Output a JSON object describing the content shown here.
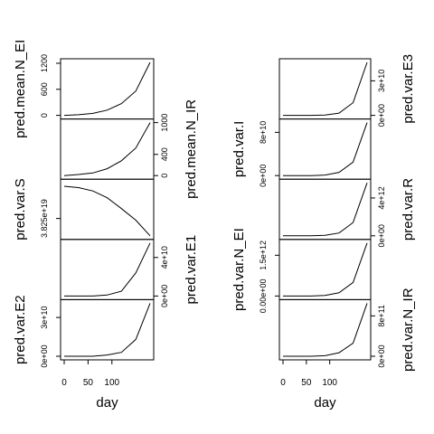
{
  "chart_data": [
    {
      "type": "line",
      "column": "left",
      "xlabel": "day",
      "x": [
        0,
        30,
        60,
        90,
        120,
        150,
        180
      ],
      "x_ticks": [
        0,
        50,
        100
      ],
      "xlim": [
        0,
        180
      ],
      "panels": [
        {
          "name": "pred.mean.N_EI",
          "ylabel": "pred.mean.N_EI",
          "axis_side": "left",
          "yticks": [
            0,
            600,
            1200
          ],
          "ytick_labels": [
            "0",
            "600",
            "1200"
          ],
          "ylim": [
            0,
            1220
          ],
          "values": [
            0,
            15,
            45,
            120,
            270,
            560,
            1220
          ]
        },
        {
          "name": "pred.mean.N_IR",
          "ylabel": "pred.mean.N_IR",
          "axis_side": "right",
          "yticks": [
            0,
            400,
            1000
          ],
          "ytick_labels": [
            "0",
            "400",
            "1000"
          ],
          "ylim": [
            0,
            1000
          ],
          "values": [
            0,
            20,
            50,
            130,
            280,
            520,
            1000
          ]
        },
        {
          "name": "pred.var.S",
          "ylabel": "pred.var.S",
          "axis_side": "left",
          "yticks": [
            3.825e+19
          ],
          "ytick_labels": [
            "3.825e+19"
          ],
          "ylim": [
            3.57e+19,
            4.35e+19
          ],
          "values": [
            4.3e+19,
            4.28e+19,
            4.23e+19,
            4.13e+19,
            3.97e+19,
            3.8e+19,
            3.57e+19
          ]
        },
        {
          "name": "pred.var.E1",
          "ylabel": "pred.var.E1",
          "axis_side": "right",
          "yticks": [
            0,
            40000000000
          ],
          "ytick_labels": [
            "0e+00",
            "4e+10"
          ],
          "ylim": [
            0,
            55000000000.0
          ],
          "values": [
            0,
            0,
            0,
            1000000000.0,
            5000000000.0,
            24000000000.0,
            55000000000.0
          ]
        },
        {
          "name": "pred.var.E2",
          "ylabel": "pred.var.E2",
          "axis_side": "left",
          "yticks": [
            0,
            30000000000
          ],
          "ytick_labels": [
            "0e+00",
            "3e+10"
          ],
          "ylim": [
            0,
            41000000000.0
          ],
          "values": [
            0,
            0,
            0,
            1000000000.0,
            3000000000.0,
            13000000000.0,
            41000000000.0
          ]
        }
      ]
    },
    {
      "type": "line",
      "column": "right",
      "xlabel": "day",
      "x": [
        0,
        30,
        60,
        90,
        120,
        150,
        180
      ],
      "x_ticks": [
        0,
        50,
        100
      ],
      "xlim": [
        0,
        180
      ],
      "panels": [
        {
          "name": "pred.var.E3",
          "ylabel": "pred.var.E3",
          "axis_side": "right",
          "yticks": [
            0,
            30000000000
          ],
          "ytick_labels": [
            "0e+00",
            "3e+10"
          ],
          "ylim": [
            0,
            46000000000.0
          ],
          "values": [
            0,
            0,
            0,
            200000000.0,
            2000000000.0,
            11000000000.0,
            46000000000.0
          ]
        },
        {
          "name": "pred.var.I",
          "ylabel": "pred.var.I",
          "axis_side": "left",
          "yticks": [
            0,
            80000000000
          ],
          "ytick_labels": [
            "0e+00",
            "8e+10"
          ],
          "ylim": [
            0,
            98000000000.0
          ],
          "values": [
            0,
            0,
            0,
            1000000000.0,
            6000000000.0,
            25000000000.0,
            98000000000.0
          ]
        },
        {
          "name": "pred.var.R",
          "ylabel": "pred.var.R",
          "axis_side": "right",
          "yticks": [
            0,
            4000000000000
          ],
          "ytick_labels": [
            "0e+00",
            "4e+12"
          ],
          "ylim": [
            0,
            5600000000000.0
          ],
          "values": [
            0,
            0,
            0,
            50000000000.0,
            300000000000.0,
            1400000000000.0,
            5600000000000.0
          ]
        },
        {
          "name": "pred.var.N_EI",
          "ylabel": "pred.var.N_EI",
          "axis_side": "left",
          "yticks": [
            0,
            1500000000000
          ],
          "ytick_labels": [
            "0.00e+00",
            "1.5e+12"
          ],
          "ylim": [
            0,
            1950000000000.0
          ],
          "values": [
            0,
            0,
            0,
            20000000000.0,
            120000000000.0,
            500000000000.0,
            1950000000000.0
          ]
        },
        {
          "name": "pred.var.N_IR",
          "ylabel": "pred.var.N_IR",
          "axis_side": "right",
          "yticks": [
            0,
            800000000000
          ],
          "ytick_labels": [
            "0e+00",
            "8e+11"
          ],
          "ylim": [
            0,
            1050000000000.0
          ],
          "values": [
            0,
            0,
            0,
            10000000000.0,
            70000000000.0,
            260000000000.0,
            1050000000000.0
          ]
        }
      ]
    }
  ]
}
